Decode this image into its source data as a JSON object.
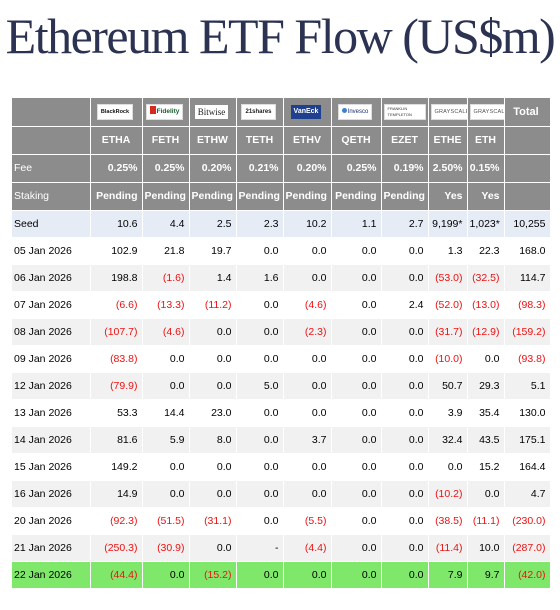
{
  "title": "Ethereum ETF Flow (US$m)",
  "logos": [
    {
      "icon": "blackrock-logo",
      "text": "BlackRock"
    },
    {
      "icon": "fidelity-logo",
      "text": "Fidelity"
    },
    {
      "icon": "bitwise-logo",
      "text": "Bitwise"
    },
    {
      "icon": "21shares-logo",
      "text": "21shares"
    },
    {
      "icon": "vaneck-logo",
      "text": "VanEck"
    },
    {
      "icon": "invesco-logo",
      "text": "Invesco"
    },
    {
      "icon": "franklin-templeton-logo",
      "text": "FRANKLIN TEMPLETON"
    },
    {
      "icon": "grayscale-logo",
      "text": "GRAYSCALE"
    },
    {
      "icon": "grayscale-logo",
      "text": "GRAYSCALE"
    }
  ],
  "total_header": "Total",
  "tickers": [
    "ETHA",
    "FETH",
    "ETHW",
    "TETH",
    "ETHV",
    "QETH",
    "EZET",
    "ETHE",
    "ETH"
  ],
  "fee_label": "Fee",
  "fees": [
    "0.25%",
    "0.25%",
    "0.20%",
    "0.21%",
    "0.20%",
    "0.25%",
    "0.19%",
    "2.50%",
    "0.15%"
  ],
  "staking_label": "Staking",
  "staking": [
    "Pending",
    "Pending",
    "Pending",
    "Pending",
    "Pending",
    "Pending",
    "Pending",
    "Yes",
    "Yes"
  ],
  "rows": [
    {
      "label": "Seed",
      "values": [
        "10.6",
        "4.4",
        "2.5",
        "2.3",
        "10.2",
        "1.1",
        "2.7",
        "9,199*",
        "1,023*",
        "10,255"
      ]
    },
    {
      "label": "05 Jan 2026",
      "values": [
        "102.9",
        "21.8",
        "19.7",
        "0.0",
        "0.0",
        "0.0",
        "0.0",
        "1.3",
        "22.3",
        "168.0"
      ]
    },
    {
      "label": "06 Jan 2026",
      "values": [
        "198.8",
        "(1.6)",
        "1.4",
        "1.6",
        "0.0",
        "0.0",
        "0.0",
        "(53.0)",
        "(32.5)",
        "114.7"
      ]
    },
    {
      "label": "07 Jan 2026",
      "values": [
        "(6.6)",
        "(13.3)",
        "(11.2)",
        "0.0",
        "(4.6)",
        "0.0",
        "2.4",
        "(52.0)",
        "(13.0)",
        "(98.3)"
      ]
    },
    {
      "label": "08 Jan 2026",
      "values": [
        "(107.7)",
        "(4.6)",
        "0.0",
        "0.0",
        "(2.3)",
        "0.0",
        "0.0",
        "(31.7)",
        "(12.9)",
        "(159.2)"
      ]
    },
    {
      "label": "09 Jan 2026",
      "values": [
        "(83.8)",
        "0.0",
        "0.0",
        "0.0",
        "0.0",
        "0.0",
        "0.0",
        "(10.0)",
        "0.0",
        "(93.8)"
      ]
    },
    {
      "label": "12 Jan 2026",
      "values": [
        "(79.9)",
        "0.0",
        "0.0",
        "5.0",
        "0.0",
        "0.0",
        "0.0",
        "50.7",
        "29.3",
        "5.1"
      ]
    },
    {
      "label": "13 Jan 2026",
      "values": [
        "53.3",
        "14.4",
        "23.0",
        "0.0",
        "0.0",
        "0.0",
        "0.0",
        "3.9",
        "35.4",
        "130.0"
      ]
    },
    {
      "label": "14 Jan 2026",
      "values": [
        "81.6",
        "5.9",
        "8.0",
        "0.0",
        "3.7",
        "0.0",
        "0.0",
        "32.4",
        "43.5",
        "175.1"
      ]
    },
    {
      "label": "15 Jan 2026",
      "values": [
        "149.2",
        "0.0",
        "0.0",
        "0.0",
        "0.0",
        "0.0",
        "0.0",
        "0.0",
        "15.2",
        "164.4"
      ]
    },
    {
      "label": "16 Jan 2026",
      "values": [
        "14.9",
        "0.0",
        "0.0",
        "0.0",
        "0.0",
        "0.0",
        "0.0",
        "(10.2)",
        "0.0",
        "4.7"
      ]
    },
    {
      "label": "20 Jan 2026",
      "values": [
        "(92.3)",
        "(51.5)",
        "(31.1)",
        "0.0",
        "(5.5)",
        "0.0",
        "0.0",
        "(38.5)",
        "(11.1)",
        "(230.0)"
      ]
    },
    {
      "label": "21 Jan 2026",
      "values": [
        "(250.3)",
        "(30.9)",
        "0.0",
        "-",
        "(4.4)",
        "0.0",
        "0.0",
        "(11.4)",
        "10.0",
        "(287.0)"
      ]
    },
    {
      "label": "22 Jan 2026",
      "values": [
        "(44.4)",
        "0.0",
        "(15.2)",
        "0.0",
        "0.0",
        "0.0",
        "0.0",
        "7.9",
        "9.7",
        "(42.0)"
      ]
    }
  ],
  "colors": {
    "header_bg": "#8c8c8c",
    "seed_bg": "#e6ecf5",
    "alt_row_bg": "#f1f1f1",
    "highlight_row_bg": "#7fe86b",
    "negative_text": "#ee1111",
    "title_text": "#2c3352"
  }
}
